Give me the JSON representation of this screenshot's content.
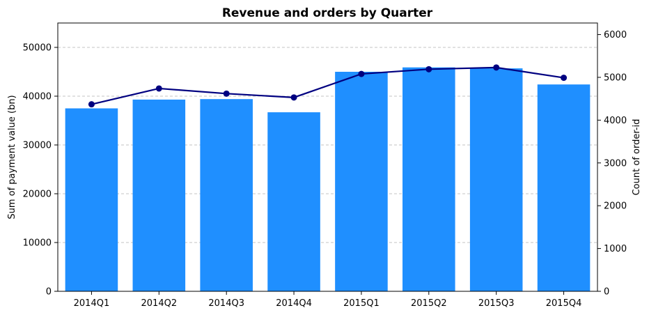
{
  "chart_data": {
    "type": "bar",
    "title": "Revenue and orders by Quarter",
    "categories": [
      "2014Q1",
      "2014Q2",
      "2014Q3",
      "2014Q4",
      "2015Q1",
      "2015Q2",
      "2015Q3",
      "2015Q4"
    ],
    "series": [
      {
        "type": "bar",
        "axis": "left",
        "values": [
          37500,
          39300,
          39400,
          36700,
          45000,
          45900,
          45700,
          42400
        ],
        "color": "#1f8fff"
      },
      {
        "type": "line",
        "axis": "right",
        "values": [
          4370,
          4740,
          4620,
          4530,
          5080,
          5190,
          5230,
          4990
        ],
        "color": "#000080",
        "marker": "circle"
      }
    ],
    "ylabel": "Sum of payment value (bn)",
    "ylim": [
      0,
      55000
    ],
    "yticks": [
      0,
      10000,
      20000,
      30000,
      40000,
      50000
    ],
    "y2label": "Count of order-id",
    "y2lim": [
      0,
      6270
    ],
    "y2ticks": [
      0,
      1000,
      2000,
      3000,
      4000,
      5000,
      6000
    ],
    "grid": "horizontal-dashed"
  }
}
